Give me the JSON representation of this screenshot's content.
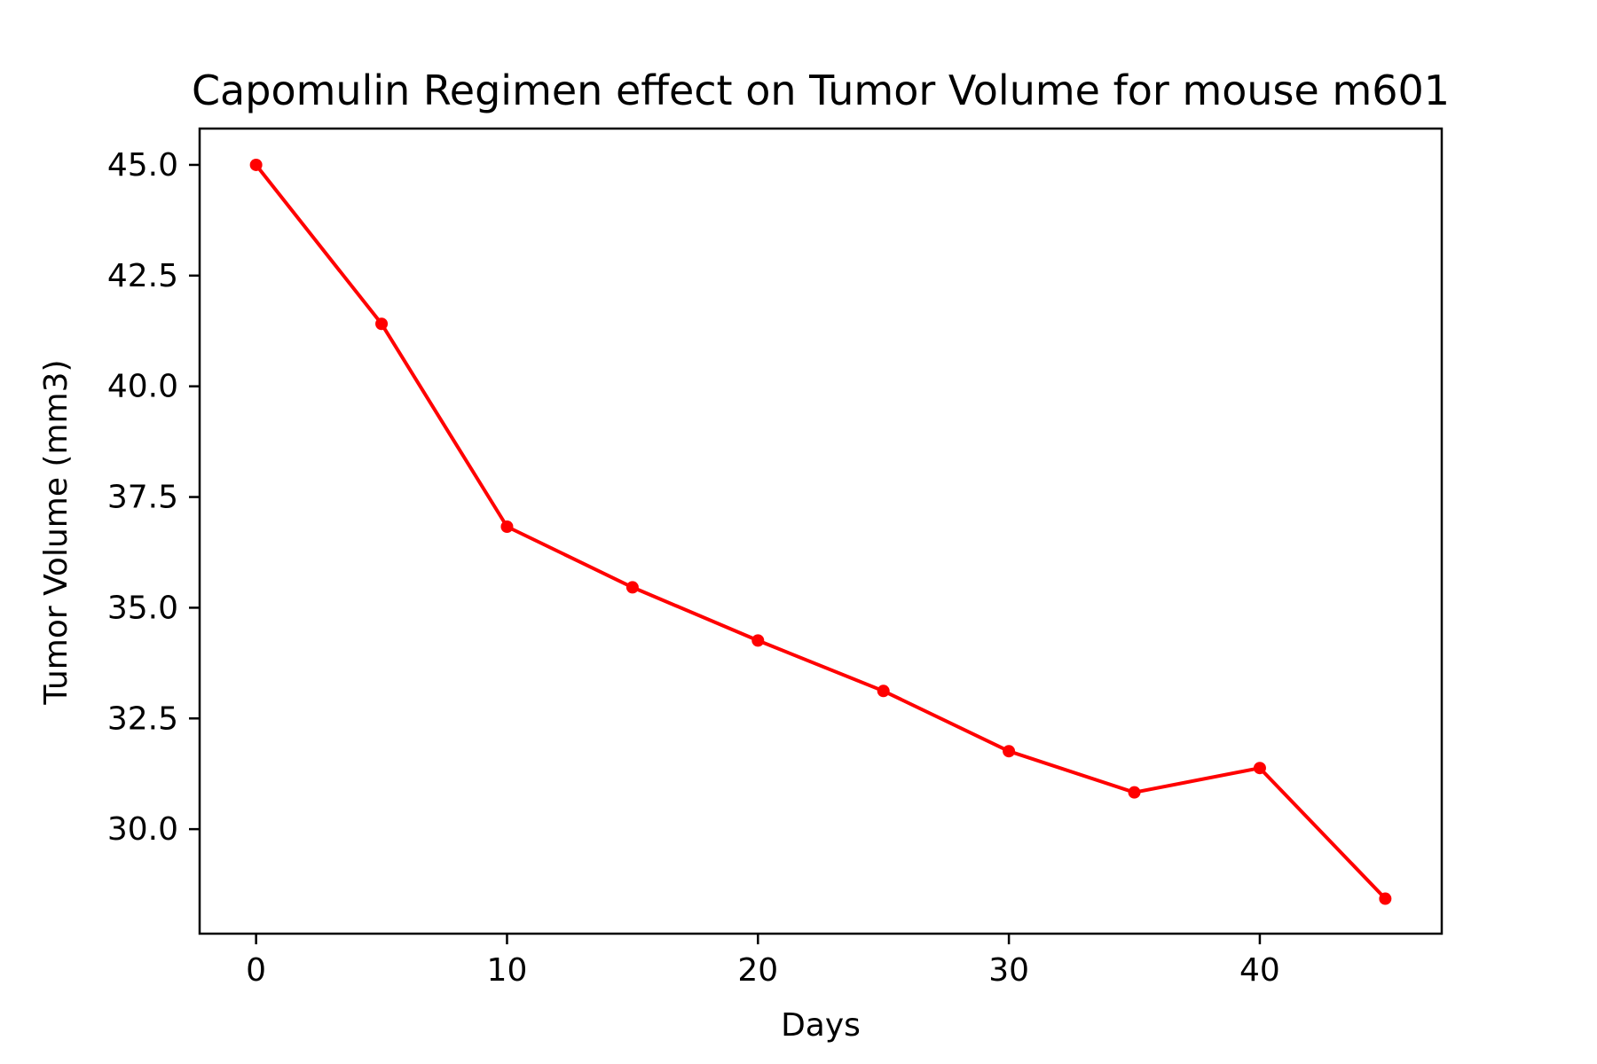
{
  "chart_data": {
    "type": "line",
    "title": "Capomulin Regimen effect on Tumor Volume for mouse m601",
    "xlabel": "Days",
    "ylabel": "Tumor Volume (mm3)",
    "xlim": [
      -2.25,
      47.25
    ],
    "ylim": [
      27.64,
      45.82
    ],
    "x_ticks": [
      0,
      10,
      20,
      30,
      40
    ],
    "x_tick_labels": [
      "0",
      "10",
      "20",
      "30",
      "40"
    ],
    "y_ticks": [
      30.0,
      32.5,
      35.0,
      37.5,
      40.0,
      42.5,
      45.0
    ],
    "y_tick_labels": [
      "30.0",
      "32.5",
      "35.0",
      "37.5",
      "40.0",
      "42.5",
      "45.0"
    ],
    "grid": false,
    "legend": "none",
    "series": [
      {
        "color": "#ff0000",
        "marker": "circle",
        "x": [
          0,
          5,
          10,
          15,
          20,
          25,
          30,
          35,
          40,
          45
        ],
        "y": [
          45.0,
          41.41,
          36.83,
          35.46,
          34.26,
          33.12,
          31.76,
          30.83,
          31.38,
          28.43
        ]
      }
    ]
  }
}
